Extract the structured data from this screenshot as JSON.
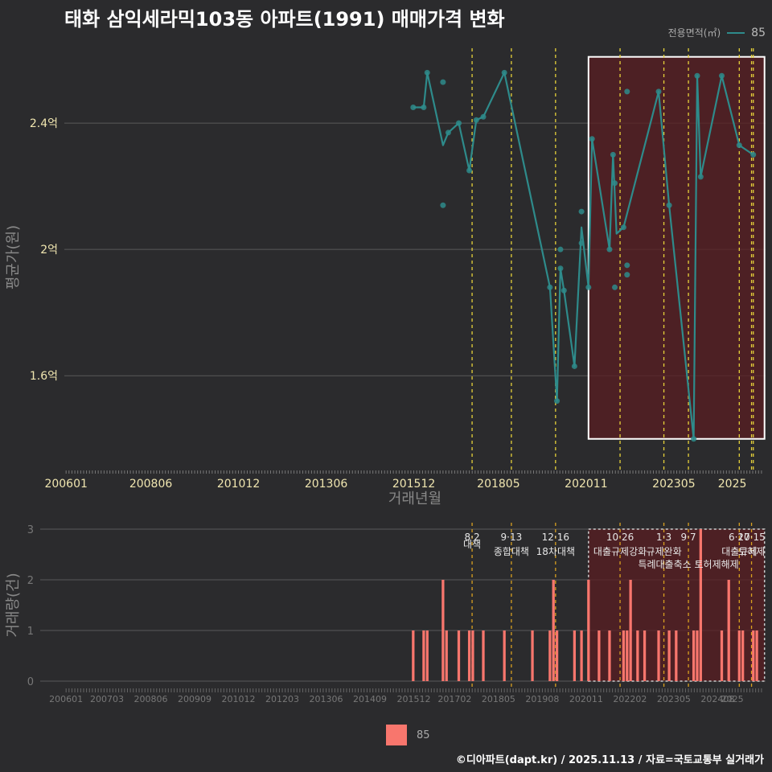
{
  "chart_data": {
    "title": "태화 삼익세라믹103동 아파트(1991) 매매가격 변화",
    "footer": "©디아파트(dapt.kr) / 2025.11.13 / 자료=국토교통부 실거래가",
    "legend_title": "전용면적(㎡)",
    "legend_label": "85",
    "colors": {
      "line": "#2e8b8b",
      "bar": "#f8766d",
      "policy_line": "#e6d13a",
      "policy_line_bottom": "#d8a020",
      "highlight": "#5a1e22"
    },
    "price_chart": {
      "type": "line",
      "xlabel": "거래년월",
      "ylabel": "평균가(원)",
      "ylim": [
        1.3,
        2.65
      ],
      "y_ticks": [
        {
          "value": 1.6,
          "label": "1.6억"
        },
        {
          "value": 2.0,
          "label": "2억"
        },
        {
          "value": 2.4,
          "label": "2.4억"
        }
      ],
      "x_ticks": [
        {
          "t": 2006.0,
          "label": "200601"
        },
        {
          "t": 2008.417,
          "label": "200806"
        },
        {
          "t": 2010.917,
          "label": "201012"
        },
        {
          "t": 2013.417,
          "label": "201306"
        },
        {
          "t": 2015.917,
          "label": "201512"
        },
        {
          "t": 2018.333,
          "label": "201805"
        },
        {
          "t": 2020.833,
          "label": "202011"
        },
        {
          "t": 2023.333,
          "label": "202305"
        },
        {
          "t": 2025.0,
          "label": "2025"
        }
      ],
      "line": [
        [
          2015.9,
          2.45
        ],
        [
          2016.2,
          2.45
        ],
        [
          2016.3,
          2.56
        ],
        [
          2016.75,
          2.33
        ],
        [
          2016.9,
          2.37
        ],
        [
          2017.2,
          2.4
        ],
        [
          2017.5,
          2.25
        ],
        [
          2017.7,
          2.41
        ],
        [
          2017.9,
          2.42
        ],
        [
          2018.5,
          2.56
        ],
        [
          2019.8,
          1.88
        ],
        [
          2020.0,
          1.52
        ],
        [
          2020.1,
          1.94
        ],
        [
          2020.2,
          1.87
        ],
        [
          2020.5,
          1.63
        ],
        [
          2020.7,
          2.07
        ],
        [
          2020.9,
          1.88
        ],
        [
          2021.0,
          2.35
        ],
        [
          2021.5,
          2.0
        ],
        [
          2021.6,
          2.3
        ],
        [
          2021.7,
          2.05
        ],
        [
          2021.9,
          2.07
        ],
        [
          2022.9,
          2.5
        ],
        [
          2023.2,
          2.14
        ],
        [
          2023.9,
          1.4
        ],
        [
          2024.0,
          2.55
        ],
        [
          2024.1,
          2.23
        ],
        [
          2024.7,
          2.55
        ],
        [
          2025.2,
          2.33
        ],
        [
          2025.6,
          2.3
        ]
      ],
      "points": [
        [
          2015.9,
          2.45
        ],
        [
          2016.2,
          2.45
        ],
        [
          2016.3,
          2.56
        ],
        [
          2016.75,
          2.53
        ],
        [
          2016.75,
          2.14
        ],
        [
          2016.9,
          2.37
        ],
        [
          2017.2,
          2.4
        ],
        [
          2017.5,
          2.25
        ],
        [
          2017.7,
          2.41
        ],
        [
          2017.9,
          2.42
        ],
        [
          2018.5,
          2.56
        ],
        [
          2019.8,
          1.88
        ],
        [
          2020.0,
          1.52
        ],
        [
          2020.1,
          2.0
        ],
        [
          2020.1,
          1.94
        ],
        [
          2020.2,
          1.87
        ],
        [
          2020.5,
          1.63
        ],
        [
          2020.7,
          2.12
        ],
        [
          2020.7,
          2.02
        ],
        [
          2020.9,
          1.88
        ],
        [
          2021.0,
          2.35
        ],
        [
          2021.5,
          2.0
        ],
        [
          2021.6,
          2.3
        ],
        [
          2021.65,
          2.21
        ],
        [
          2021.65,
          1.88
        ],
        [
          2021.9,
          2.07
        ],
        [
          2022.0,
          2.5
        ],
        [
          2022.0,
          1.95
        ],
        [
          2022.0,
          1.92
        ],
        [
          2022.9,
          2.5
        ],
        [
          2023.2,
          2.14
        ],
        [
          2023.9,
          1.4
        ],
        [
          2024.0,
          2.55
        ],
        [
          2024.1,
          2.23
        ],
        [
          2024.7,
          2.55
        ],
        [
          2025.2,
          2.33
        ],
        [
          2025.6,
          2.3
        ]
      ],
      "policy_lines": [
        2017.58,
        2018.7,
        2019.96,
        2021.8,
        2023.05,
        2023.75,
        2025.2,
        2025.55,
        2025.6
      ],
      "highlight_range": [
        2020.9,
        2025.92
      ],
      "highlight_y": [
        1.4,
        2.61
      ]
    },
    "volume_chart": {
      "type": "bar",
      "ylabel": "거래량(건)",
      "ylim": [
        0,
        3
      ],
      "y_ticks": [
        0,
        1,
        2,
        3
      ],
      "x_ticks": [
        {
          "t": 2006.0,
          "label": "200601"
        },
        {
          "t": 2007.167,
          "label": "200703"
        },
        {
          "t": 2008.417,
          "label": "200806"
        },
        {
          "t": 2009.667,
          "label": "200909"
        },
        {
          "t": 2010.917,
          "label": "201012"
        },
        {
          "t": 2012.167,
          "label": "201203"
        },
        {
          "t": 2013.417,
          "label": "201306"
        },
        {
          "t": 2014.667,
          "label": "201409"
        },
        {
          "t": 2015.917,
          "label": "201512"
        },
        {
          "t": 2017.083,
          "label": "201702"
        },
        {
          "t": 2018.333,
          "label": "201805"
        },
        {
          "t": 2019.583,
          "label": "201908"
        },
        {
          "t": 2020.833,
          "label": "202011"
        },
        {
          "t": 2022.083,
          "label": "202202"
        },
        {
          "t": 2023.333,
          "label": "202305"
        },
        {
          "t": 2024.583,
          "label": "202408"
        },
        {
          "t": 2025.0,
          "label": "2025"
        }
      ],
      "bars": [
        [
          2015.9,
          1
        ],
        [
          2016.2,
          1
        ],
        [
          2016.3,
          1
        ],
        [
          2016.75,
          2
        ],
        [
          2016.85,
          1
        ],
        [
          2017.2,
          1
        ],
        [
          2017.5,
          1
        ],
        [
          2017.6,
          1
        ],
        [
          2017.9,
          1
        ],
        [
          2018.5,
          1
        ],
        [
          2019.3,
          1
        ],
        [
          2019.8,
          1
        ],
        [
          2019.9,
          2
        ],
        [
          2020.0,
          1
        ],
        [
          2020.5,
          1
        ],
        [
          2020.7,
          1
        ],
        [
          2020.9,
          2
        ],
        [
          2021.2,
          1
        ],
        [
          2021.5,
          1
        ],
        [
          2021.9,
          1
        ],
        [
          2022.0,
          1
        ],
        [
          2022.1,
          2
        ],
        [
          2022.3,
          1
        ],
        [
          2022.5,
          1
        ],
        [
          2022.9,
          1
        ],
        [
          2023.2,
          1
        ],
        [
          2023.4,
          1
        ],
        [
          2023.9,
          1
        ],
        [
          2024.0,
          1
        ],
        [
          2024.1,
          3
        ],
        [
          2024.7,
          1
        ],
        [
          2024.9,
          2
        ],
        [
          2025.2,
          1
        ],
        [
          2025.3,
          1
        ],
        [
          2025.6,
          1
        ],
        [
          2025.7,
          1
        ]
      ],
      "highlight_range": [
        2020.9,
        2025.92
      ],
      "annotations": [
        {
          "t": 2017.58,
          "date": "8·2",
          "text": "대책",
          "tier": 2
        },
        {
          "t": 2018.7,
          "date": "9·13",
          "text": "종합대책",
          "tier": 3
        },
        {
          "t": 2019.96,
          "date": "12·16",
          "text": "18차대책",
          "tier": 3
        },
        {
          "t": 2021.8,
          "date": "10·26",
          "text": "대출규제강화",
          "tier": 3
        },
        {
          "t": 2023.05,
          "date": "1·3",
          "text": "규제완화",
          "tier": 3
        },
        {
          "t": 2023.75,
          "date": "9·7",
          "text": "특례대출축소 토허제해제",
          "tier": 4
        },
        {
          "t": 2025.2,
          "date": "6·27",
          "text": "대출규제",
          "tier": 3
        },
        {
          "t": 2025.55,
          "date": "10·15",
          "text": "토허제",
          "tier": 3
        }
      ]
    }
  }
}
